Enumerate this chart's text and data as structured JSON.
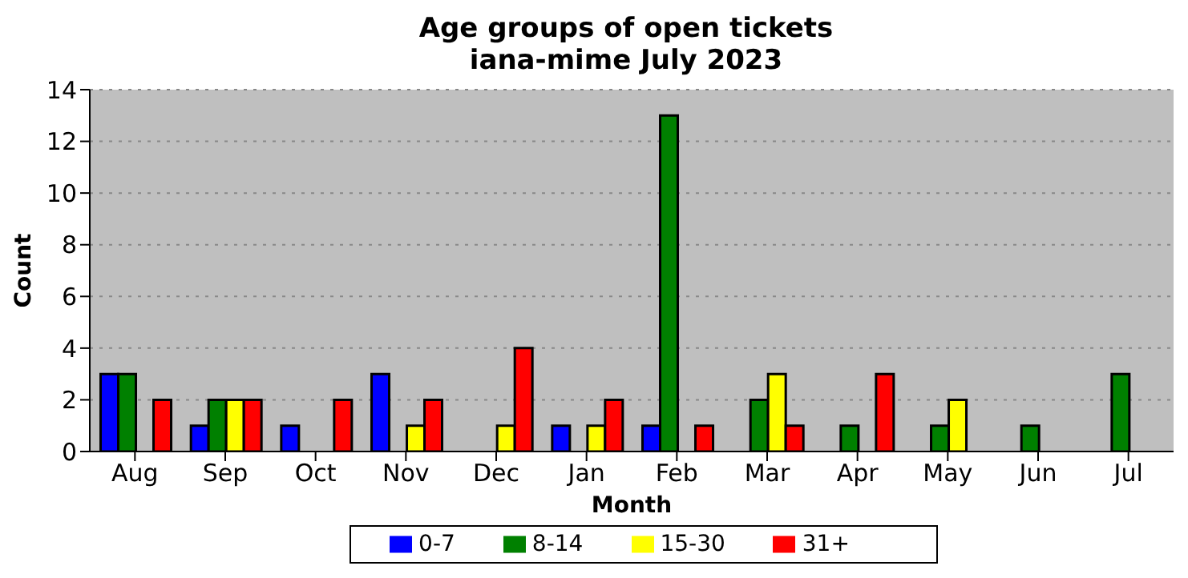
{
  "chart_data": {
    "type": "bar",
    "title": "Age groups of open tickets\niana-mime July 2023",
    "xlabel": "Month",
    "ylabel": "Count",
    "categories": [
      "Aug",
      "Sep",
      "Oct",
      "Nov",
      "Dec",
      "Jan",
      "Feb",
      "Mar",
      "Apr",
      "May",
      "Jun",
      "Jul"
    ],
    "series": [
      {
        "name": "0-7",
        "color": "#0000ff",
        "values": [
          3,
          1,
          1,
          3,
          0,
          1,
          1,
          0,
          0,
          0,
          0,
          0
        ]
      },
      {
        "name": "8-14",
        "color": "#008000",
        "values": [
          3,
          2,
          0,
          0,
          0,
          0,
          13,
          2,
          1,
          1,
          1,
          3
        ]
      },
      {
        "name": "15-30",
        "color": "#ffff00",
        "values": [
          0,
          2,
          0,
          1,
          1,
          1,
          0,
          3,
          0,
          2,
          0,
          0
        ]
      },
      {
        "name": "31+",
        "color": "#ff0000",
        "values": [
          2,
          2,
          2,
          2,
          4,
          2,
          1,
          1,
          3,
          0,
          0,
          0
        ]
      }
    ],
    "ylim": [
      0,
      14
    ],
    "yticks": [
      0,
      2,
      4,
      6,
      8,
      10,
      12,
      14
    ],
    "grid": "y",
    "legend": "bottom"
  }
}
